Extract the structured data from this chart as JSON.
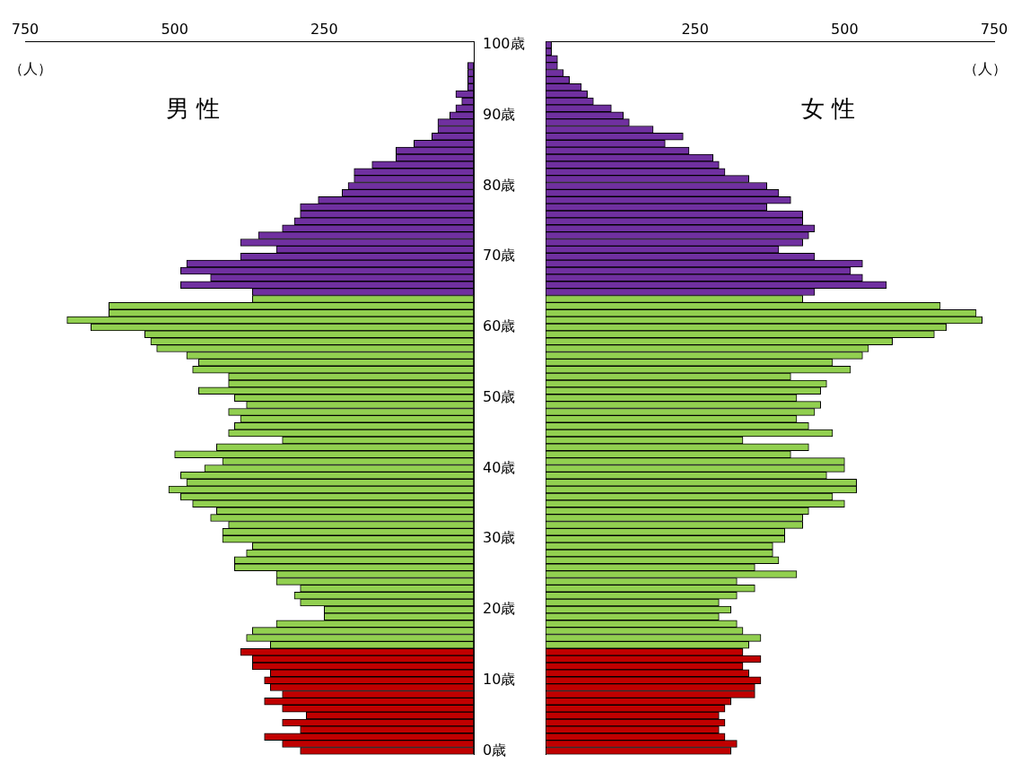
{
  "chart_data": [
    {
      "type": "bar",
      "orientation": "horizontal",
      "title": "男 性",
      "xlabel": "（人）",
      "categories": [
        "100歳",
        null,
        null,
        null,
        null,
        null,
        null,
        null,
        null,
        null,
        "90歳",
        null,
        null,
        null,
        null,
        null,
        null,
        null,
        null,
        null,
        "80歳",
        null,
        null,
        null,
        null,
        null,
        null,
        null,
        null,
        null,
        "70歳",
        null,
        null,
        null,
        null,
        null,
        null,
        null,
        null,
        null,
        "60歳",
        null,
        null,
        null,
        null,
        null,
        null,
        null,
        null,
        null,
        "50歳",
        null,
        null,
        null,
        null,
        null,
        null,
        null,
        null,
        null,
        "40歳",
        null,
        null,
        null,
        null,
        null,
        null,
        null,
        null,
        null,
        "30歳",
        null,
        null,
        null,
        null,
        null,
        null,
        null,
        null,
        null,
        "20歳",
        null,
        null,
        null,
        null,
        null,
        null,
        null,
        null,
        null,
        "10歳",
        null,
        null,
        null,
        null,
        null,
        null,
        null,
        null,
        null,
        "0歳"
      ],
      "series": [
        {
          "colors": [
            "#7030a0",
            "#7030a0",
            "#7030a0",
            "#7030a0",
            "#7030a0",
            "#7030a0",
            "#7030a0",
            "#7030a0",
            "#7030a0",
            "#7030a0",
            "#7030a0",
            "#7030a0",
            "#7030a0",
            "#7030a0",
            "#7030a0",
            "#7030a0",
            "#7030a0",
            "#7030a0",
            "#7030a0",
            "#7030a0",
            "#7030a0",
            "#7030a0",
            "#7030a0",
            "#7030a0",
            "#7030a0",
            "#7030a0",
            "#7030a0",
            "#7030a0",
            "#7030a0",
            "#7030a0",
            "#7030a0",
            "#7030a0",
            "#7030a0",
            "#7030a0",
            "#7030a0",
            "#7030a0",
            "#92d050",
            "#92d050",
            "#92d050",
            "#92d050",
            "#92d050",
            "#92d050",
            "#92d050",
            "#92d050",
            "#92d050",
            "#92d050",
            "#92d050",
            "#92d050",
            "#92d050",
            "#92d050",
            "#92d050",
            "#92d050",
            "#92d050",
            "#92d050",
            "#92d050",
            "#92d050",
            "#92d050",
            "#92d050",
            "#92d050",
            "#92d050",
            "#92d050",
            "#92d050",
            "#92d050",
            "#92d050",
            "#92d050",
            "#92d050",
            "#92d050",
            "#92d050",
            "#92d050",
            "#92d050",
            "#92d050",
            "#92d050",
            "#92d050",
            "#92d050",
            "#92d050",
            "#92d050",
            "#92d050",
            "#92d050",
            "#92d050",
            "#92d050",
            "#92d050",
            "#92d050",
            "#92d050",
            "#92d050",
            "#92d050",
            "#92d050",
            "#c00000",
            "#c00000",
            "#c00000",
            "#c00000",
            "#c00000",
            "#c00000",
            "#c00000",
            "#c00000",
            "#c00000",
            "#c00000",
            "#c00000",
            "#c00000",
            "#c00000",
            "#c00000",
            "#c00000"
          ],
          "values": [
            0,
            0,
            0,
            10,
            10,
            10,
            10,
            30,
            20,
            30,
            40,
            60,
            60,
            70,
            100,
            130,
            130,
            170,
            200,
            200,
            210,
            220,
            260,
            290,
            290,
            300,
            320,
            360,
            390,
            330,
            390,
            480,
            490,
            440,
            490,
            370,
            370,
            610,
            610,
            680,
            640,
            550,
            540,
            530,
            480,
            460,
            470,
            410,
            410,
            460,
            400,
            380,
            410,
            390,
            400,
            410,
            320,
            430,
            500,
            420,
            450,
            490,
            480,
            510,
            490,
            470,
            430,
            440,
            410,
            420,
            420,
            370,
            380,
            400,
            400,
            330,
            330,
            290,
            300,
            290,
            250,
            250,
            330,
            370,
            380,
            340,
            390,
            370,
            370,
            340,
            350,
            340,
            320,
            350,
            320,
            280,
            320,
            290,
            350,
            320,
            290
          ]
        }
      ],
      "xlim": [
        750,
        0
      ],
      "xticks": [
        750,
        500,
        250
      ]
    },
    {
      "type": "bar",
      "orientation": "horizontal",
      "title": "女 性",
      "xlabel": "（人）",
      "categories": [
        null,
        null,
        null,
        null,
        null,
        null,
        null,
        null,
        null,
        null,
        null,
        null,
        null,
        null,
        null,
        null,
        null,
        null,
        null,
        null,
        null,
        null,
        null,
        null,
        null,
        null,
        null,
        null,
        null,
        null,
        null,
        null,
        null,
        null,
        null,
        null,
        null,
        null,
        null,
        null,
        null,
        null,
        null,
        null,
        null,
        null,
        null,
        null,
        null,
        null,
        null,
        null,
        null,
        null,
        null,
        null,
        null,
        null,
        null,
        null,
        null,
        null,
        null,
        null,
        null,
        null,
        null,
        null,
        null,
        null,
        null,
        null,
        null,
        null,
        null,
        null,
        null,
        null,
        null,
        null,
        null,
        null,
        null,
        null,
        null,
        null,
        null,
        null,
        null,
        null,
        null,
        null,
        null,
        null,
        null,
        null,
        null,
        null,
        null,
        null,
        null
      ],
      "series": [
        {
          "colors": [
            "#7030a0",
            "#7030a0",
            "#7030a0",
            "#7030a0",
            "#7030a0",
            "#7030a0",
            "#7030a0",
            "#7030a0",
            "#7030a0",
            "#7030a0",
            "#7030a0",
            "#7030a0",
            "#7030a0",
            "#7030a0",
            "#7030a0",
            "#7030a0",
            "#7030a0",
            "#7030a0",
            "#7030a0",
            "#7030a0",
            "#7030a0",
            "#7030a0",
            "#7030a0",
            "#7030a0",
            "#7030a0",
            "#7030a0",
            "#7030a0",
            "#7030a0",
            "#7030a0",
            "#7030a0",
            "#7030a0",
            "#7030a0",
            "#7030a0",
            "#7030a0",
            "#7030a0",
            "#7030a0",
            "#92d050",
            "#92d050",
            "#92d050",
            "#92d050",
            "#92d050",
            "#92d050",
            "#92d050",
            "#92d050",
            "#92d050",
            "#92d050",
            "#92d050",
            "#92d050",
            "#92d050",
            "#92d050",
            "#92d050",
            "#92d050",
            "#92d050",
            "#92d050",
            "#92d050",
            "#92d050",
            "#92d050",
            "#92d050",
            "#92d050",
            "#92d050",
            "#92d050",
            "#92d050",
            "#92d050",
            "#92d050",
            "#92d050",
            "#92d050",
            "#92d050",
            "#92d050",
            "#92d050",
            "#92d050",
            "#92d050",
            "#92d050",
            "#92d050",
            "#92d050",
            "#92d050",
            "#92d050",
            "#92d050",
            "#92d050",
            "#92d050",
            "#92d050",
            "#92d050",
            "#92d050",
            "#92d050",
            "#92d050",
            "#92d050",
            "#92d050",
            "#c00000",
            "#c00000",
            "#c00000",
            "#c00000",
            "#c00000",
            "#c00000",
            "#c00000",
            "#c00000",
            "#c00000",
            "#c00000",
            "#c00000",
            "#c00000",
            "#c00000",
            "#c00000",
            "#c00000"
          ],
          "values": [
            10,
            10,
            20,
            20,
            30,
            40,
            60,
            70,
            80,
            110,
            130,
            140,
            180,
            230,
            200,
            240,
            280,
            290,
            300,
            340,
            370,
            390,
            410,
            370,
            430,
            430,
            450,
            440,
            430,
            390,
            450,
            530,
            510,
            530,
            570,
            450,
            430,
            660,
            720,
            730,
            670,
            650,
            580,
            540,
            530,
            480,
            510,
            410,
            470,
            460,
            420,
            460,
            450,
            420,
            440,
            480,
            330,
            440,
            410,
            500,
            500,
            470,
            520,
            520,
            480,
            500,
            440,
            430,
            430,
            400,
            400,
            380,
            380,
            390,
            350,
            420,
            320,
            350,
            320,
            290,
            310,
            290,
            320,
            330,
            360,
            340,
            330,
            360,
            330,
            340,
            360,
            350,
            350,
            310,
            300,
            290,
            300,
            290,
            300,
            320,
            310
          ]
        }
      ],
      "xlim": [
        0,
        750
      ],
      "xticks": [
        250,
        500,
        750
      ]
    }
  ]
}
